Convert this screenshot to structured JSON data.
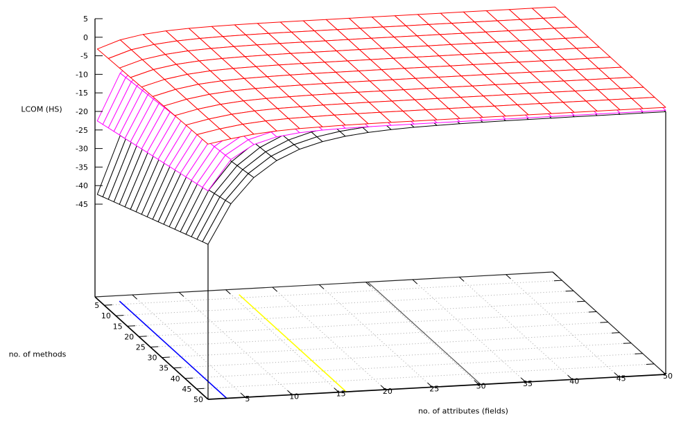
{
  "page": {
    "background": "#ffffff"
  },
  "chart_data": {
    "type": "surface3d-wireframe",
    "title": "",
    "xlabel": "no. of attributes (fields)",
    "ylabel": "no. of methods",
    "zlabel": "LCOM (HS)",
    "x_axis": {
      "label": "no. of attributes (fields)",
      "range": [
        1,
        50
      ],
      "ticks": [
        5,
        10,
        15,
        20,
        25,
        30,
        35,
        40,
        45,
        50
      ]
    },
    "y_axis": {
      "label": "no. of methods",
      "range": [
        1,
        50
      ],
      "ticks": [
        5,
        10,
        15,
        20,
        25,
        30,
        35,
        40,
        45,
        50
      ]
    },
    "z_axis": {
      "label": "LCOM (HS)",
      "range": [
        -45,
        5
      ],
      "ticks": [
        5,
        0,
        -5,
        -10,
        -15,
        -20,
        -25,
        -30,
        -35,
        -40,
        -45
      ]
    },
    "grid": {
      "dotted": true,
      "step": 5,
      "color": "#b0b0b0"
    },
    "colors": {
      "axis": "#000000",
      "box_back_edge": "#222222",
      "background": "#ffffff"
    },
    "surfaces": [
      {
        "name": "lower-surface",
        "color": "#000000",
        "a_values": [
          1,
          3.45,
          5.9,
          8.35,
          10.8,
          13.25,
          15.7,
          18.15,
          20.6,
          23.05,
          25.5,
          27.95,
          30.4,
          32.85,
          35.3,
          37.75,
          40.2,
          42.65,
          45.1,
          47.55,
          50
        ],
        "m_values": [
          2,
          4.4,
          6.8,
          9.2,
          11.6,
          14,
          16.4,
          18.8,
          21.2,
          23.6,
          26,
          28.4,
          30.8,
          33.2,
          35.6,
          38,
          40.4,
          42.8,
          45.2,
          47.6,
          50
        ],
        "z_at_m_first": [
          -41.8,
          -26.26,
          -16.39,
          -10.12,
          -6.14,
          -3.61,
          -2,
          -0.98,
          -0.33,
          0.08,
          0.34,
          0.51,
          0.62,
          0.68,
          0.73,
          0.75,
          0.77,
          0.78,
          0.79,
          0.79,
          0.8
        ],
        "z_at_m_last": [
          -28.2,
          -17.62,
          -10.9,
          -6.64,
          -3.92,
          -2.2,
          -1.11,
          -0.41,
          0.03,
          0.31,
          0.49,
          0.6,
          0.67,
          0.72,
          0.75,
          0.77,
          0.78,
          0.79,
          0.79,
          0.8,
          0.8
        ],
        "m_interpolation": "linear"
      },
      {
        "name": "middle-surface",
        "color": "#ff00ff",
        "a_values": [
          1,
          3.45,
          5.9,
          8.35,
          10.8,
          13.25,
          15.7,
          18.15,
          20.6,
          23.05,
          25.5,
          27.95,
          30.4,
          32.85,
          35.3,
          37.75,
          40.2,
          42.65,
          45.1,
          47.55,
          50
        ],
        "m_values": [
          2,
          4.4,
          6.8,
          9.2,
          11.6,
          14,
          16.4,
          18.8,
          21.2,
          23.6,
          26,
          28.4,
          30.8,
          33.2,
          35.6,
          38,
          40.4,
          42.8,
          45.2,
          47.6,
          50
        ],
        "z_at_m_first": [
          -22,
          -9.46,
          -3.7,
          -1.05,
          0.17,
          0.73,
          0.98,
          1.1,
          1.15,
          1.18,
          1.19,
          1.2,
          1.2,
          1.2,
          1.2,
          1.2,
          1.2,
          1.2,
          1.2,
          1.2,
          1.2
        ],
        "z_at_m_last": [
          -13.8,
          -5.69,
          -1.97,
          -0.25,
          0.53,
          0.89,
          1.06,
          1.14,
          1.17,
          1.19,
          1.19,
          1.2,
          1.2,
          1.2,
          1.2,
          1.2,
          1.2,
          1.2,
          1.2,
          1.2,
          1.2
        ],
        "m_interpolation": "linear"
      },
      {
        "name": "upper-surface",
        "color": "#ff0000",
        "a_values": [
          1,
          3.45,
          5.9,
          8.35,
          10.8,
          13.25,
          15.7,
          18.15,
          20.6,
          23.05,
          25.5,
          27.95,
          30.4,
          32.85,
          35.3,
          37.75,
          40.2,
          42.65,
          45.1,
          47.55,
          50
        ],
        "m_values": [
          2,
          6.8,
          11.6,
          16.4,
          21.2,
          26,
          30.8,
          35.6,
          40.4,
          45.2,
          50
        ],
        "z_at_m_first": [
          -2.6,
          -0.49,
          0.65,
          1.27,
          1.6,
          1.78,
          1.88,
          1.94,
          1.97,
          1.98,
          1.99,
          1.99,
          2,
          2,
          2,
          2,
          2,
          2,
          2,
          2,
          2
        ],
        "z_at_m_last": [
          -1.2,
          -0.1,
          0.8,
          1.35,
          1.65,
          1.8,
          1.9,
          1.95,
          1.97,
          1.98,
          1.99,
          1.99,
          2,
          2,
          2,
          2,
          2,
          2,
          2,
          2,
          2
        ],
        "m_interpolation": "linear"
      }
    ],
    "base_contours": [
      {
        "name": "contour-blue",
        "color": "#0000ff",
        "a_level": 3.0,
        "m_from": 3.5,
        "m_to": 50,
        "width": 1.6
      },
      {
        "name": "contour-yellow",
        "color": "#ffff00",
        "a_level": 15.8,
        "m_from": 3.5,
        "m_to": 50,
        "width": 1.6
      },
      {
        "name": "contour-gray",
        "color": "#595959",
        "a_level": 30.2,
        "m_from": 1,
        "m_to": 50,
        "width": 1.2
      }
    ]
  }
}
